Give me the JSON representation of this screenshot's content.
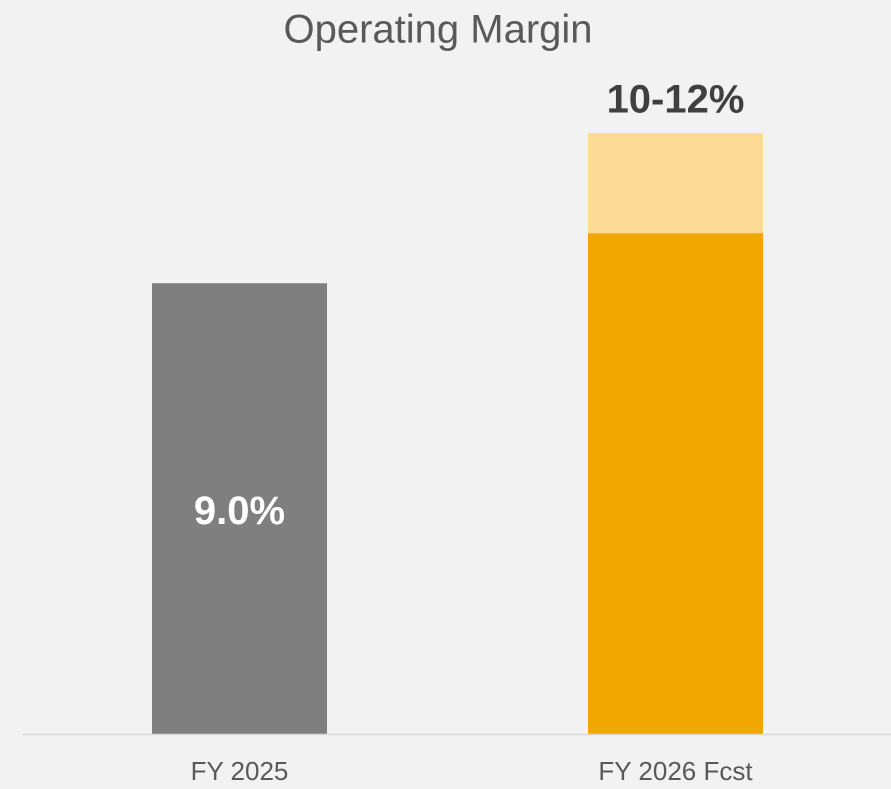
{
  "chart_data": {
    "type": "bar",
    "stacked": true,
    "title": "Operating Margin",
    "categories": [
      "FY 2025",
      "FY 2026 Fcst"
    ],
    "series": [
      {
        "colors": [
          "#7f7f7f",
          "#f0a800"
        ],
        "values": [
          9.0,
          10
        ],
        "value_labels": [
          "9.0%",
          null
        ]
      },
      {
        "colors": [
          null,
          "#fddb94"
        ],
        "values": [
          null,
          2
        ]
      }
    ],
    "annotation": "10-12%",
    "ylim": [
      0,
      12
    ]
  }
}
